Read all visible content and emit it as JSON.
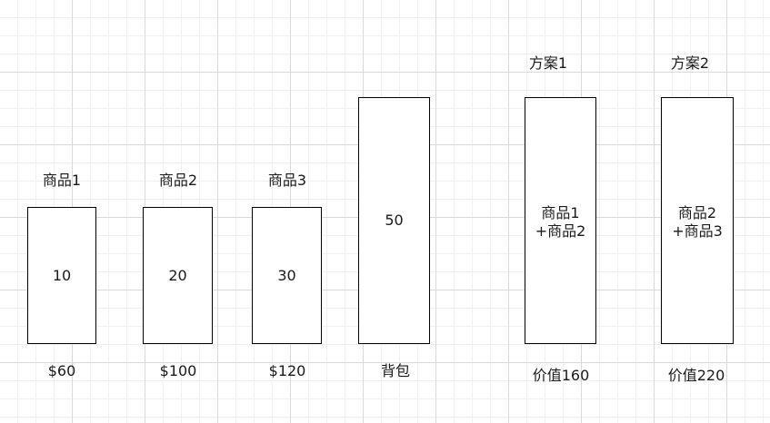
{
  "items": [
    {
      "name": "商品1",
      "weight": "10",
      "price": "$60"
    },
    {
      "name": "商品2",
      "weight": "20",
      "price": "$100"
    },
    {
      "name": "商品3",
      "weight": "30",
      "price": "$120"
    }
  ],
  "backpack": {
    "capacity": "50",
    "label": "背包"
  },
  "plans": [
    {
      "title": "方案1",
      "line1": "商品1",
      "line2": "+商品2",
      "value": "价值160"
    },
    {
      "title": "方案2",
      "line1": "商品2",
      "line2": "+商品3",
      "value": "价值220"
    }
  ]
}
